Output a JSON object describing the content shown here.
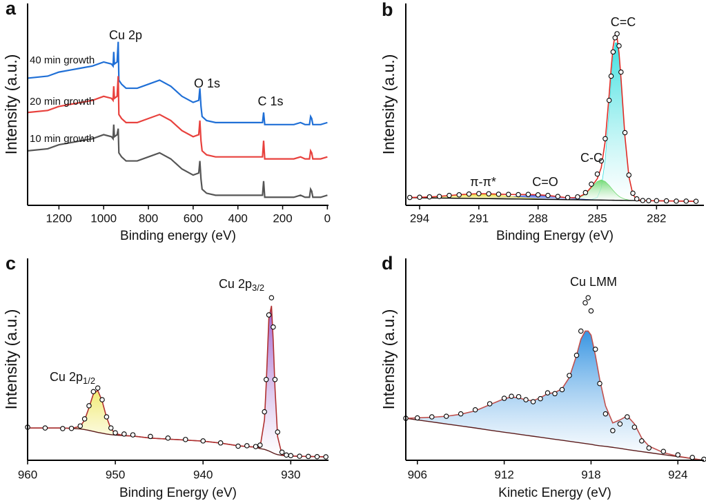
{
  "chart_data": [
    {
      "type": "line",
      "panel_label": "a",
      "ylabel": "Intensity (a.u.)",
      "xlabel": "Binding energy (eV)",
      "xlim": [
        1340,
        -5
      ],
      "xticks": [
        1200,
        1000,
        800,
        600,
        400,
        200,
        0
      ],
      "ylim": [
        0,
        100
      ],
      "annotations": [
        "Cu 2p",
        "O 1s",
        "C 1s"
      ],
      "x": [
        1340,
        1250,
        1200,
        1150,
        1100,
        1050,
        1000,
        965,
        958,
        955,
        952,
        940,
        935,
        932,
        920,
        900,
        850,
        800,
        750,
        700,
        650,
        600,
        575,
        570,
        565,
        560,
        540,
        500,
        400,
        300,
        290,
        285,
        280,
        250,
        200,
        150,
        120,
        100,
        80,
        75,
        70,
        65,
        60,
        30,
        0
      ],
      "series": [
        {
          "name": "40 min growth",
          "color": "#1f6fd6",
          "style": "line",
          "values": [
            63,
            64,
            66,
            67,
            68,
            69,
            71,
            70,
            69,
            76,
            70,
            71,
            81,
            62,
            60,
            58,
            58,
            60,
            62,
            59,
            54,
            51,
            52,
            58,
            49,
            44,
            42,
            41,
            41,
            41,
            41,
            46,
            40,
            40,
            40,
            40,
            41,
            40,
            40,
            44,
            43,
            40,
            40,
            40,
            41
          ]
        },
        {
          "name": "20 min growth",
          "color": "#e8413d",
          "style": "line",
          "values": [
            46,
            47,
            49,
            50,
            51,
            52,
            54,
            53,
            52,
            59,
            53,
            54,
            64,
            45,
            43,
            41,
            41,
            43,
            45,
            42,
            37,
            34,
            35,
            42,
            32,
            27,
            25,
            24,
            24,
            24,
            24,
            32,
            23,
            23,
            23,
            23,
            24,
            23,
            23,
            27,
            26,
            23,
            23,
            23,
            24
          ]
        },
        {
          "name": "10 min growth",
          "color": "#555555",
          "style": "line",
          "values": [
            27,
            28,
            30,
            31,
            32,
            33,
            35,
            34,
            33,
            40,
            34,
            35,
            38,
            26,
            24,
            22,
            22,
            24,
            26,
            23,
            18,
            15,
            16,
            22,
            13,
            8,
            6,
            5,
            5,
            5,
            5,
            12,
            4,
            4,
            4,
            4,
            5,
            4,
            4,
            8,
            7,
            4,
            4,
            4,
            5
          ]
        }
      ]
    },
    {
      "type": "spectrum",
      "panel_label": "b",
      "ylabel": "Intensity (a.u.)",
      "xlabel": "Binding Energy (eV)",
      "xlim": [
        294.7,
        279.6
      ],
      "xticks": [
        294,
        291,
        288,
        285,
        282
      ],
      "ylim": [
        0,
        100
      ],
      "x": [
        294.5,
        294,
        293.5,
        293,
        292.5,
        292,
        291.5,
        291,
        290.5,
        290,
        289.5,
        289,
        288.5,
        288,
        287.5,
        287,
        286.5,
        286,
        285.6,
        285.3,
        285,
        284.8,
        284.6,
        284.4,
        284.3,
        284.2,
        284.1,
        284,
        283.9,
        283.8,
        283.6,
        283.4,
        283.2,
        283,
        282.7,
        282.4,
        282,
        281.5,
        281,
        280.5,
        280
      ],
      "series": [
        {
          "color": "#000000",
          "style": "points",
          "values": [
            3.9,
            4.0,
            4.2,
            4.4,
            4.9,
            5.2,
            5.6,
            5.8,
            5.7,
            5.5,
            5.4,
            5.3,
            5.4,
            5.2,
            4.9,
            4.4,
            3.9,
            4.2,
            6.3,
            10.5,
            15.5,
            22,
            33,
            52,
            64,
            76,
            83,
            85,
            79,
            66,
            36,
            15,
            6,
            3.2,
            2.4,
            2.3,
            2.3,
            2.2,
            2.1,
            2.1,
            2.0
          ]
        },
        {
          "color": "#e02b25",
          "style": "line",
          "values": [
            3.91,
            3.98,
            4.15,
            4.45,
            4.86,
            5.28,
            5.59,
            5.76,
            5.69,
            5.53,
            5.39,
            5.36,
            5.36,
            5.23,
            4.87,
            4.32,
            3.71,
            3.84,
            5.76,
            9.12,
            13.21,
            18.7,
            31.77,
            54.85,
            67.63,
            78.42,
            84.31,
            83.3,
            75.48,
            62.87,
            34.05,
            14.22,
            5.4,
            2.87,
            2.33,
            2.3,
            2.25,
            2.19,
            2.12,
            2.06,
            2.0
          ]
        },
        {
          "name": "C=C",
          "color": "#35dede",
          "style": "component",
          "values": [
            0,
            0,
            0,
            0,
            0,
            0,
            0,
            0,
            0,
            0,
            0,
            0,
            0,
            0,
            0,
            0,
            0,
            0,
            0,
            0.2,
            1.3,
            6.1,
            20,
            45,
            59,
            71,
            78,
            78,
            71,
            59,
            31,
            11.6,
            3,
            0.5,
            0,
            0,
            0,
            0,
            0,
            0,
            0
          ]
        },
        {
          "name": "C-C",
          "color": "#6fd86f",
          "style": "component",
          "values": [
            0,
            0,
            0,
            0,
            0,
            0,
            0,
            0,
            0,
            0,
            0,
            0,
            0,
            0,
            0,
            0,
            0,
            0.6,
            2.8,
            6.1,
            9.2,
            10,
            9.2,
            7.3,
            6.1,
            4.9,
            3.8,
            2.8,
            2,
            1.4,
            0.6,
            0.2,
            0,
            0,
            0,
            0,
            0,
            0,
            0,
            0,
            0
          ]
        },
        {
          "name": "C=O",
          "color": "#3355e0",
          "style": "component",
          "values": [
            0,
            0,
            0,
            0,
            0,
            0,
            0,
            0.1,
            0.23,
            0.5,
            0.9,
            1.4,
            1.83,
            2,
            1.83,
            1.4,
            0.9,
            0.5,
            0.27,
            0.16,
            0.09,
            0,
            0,
            0,
            0,
            0,
            0,
            0,
            0,
            0,
            0,
            0,
            0,
            0,
            0,
            0,
            0,
            0,
            0,
            0,
            0
          ]
        },
        {
          "name": "π-π*",
          "color": "#e6dc2c",
          "style": "component",
          "values": [
            0.11,
            0.24,
            0.48,
            0.84,
            1.31,
            1.79,
            2.16,
            2.3,
            2.16,
            1.79,
            1.31,
            0.84,
            0.48,
            0.24,
            0.11,
            0.05,
            0,
            0,
            0,
            0,
            0,
            0,
            0,
            0,
            0,
            0,
            0,
            0,
            0,
            0,
            0,
            0,
            0,
            0,
            0,
            0,
            0,
            0,
            0,
            0,
            0
          ]
        },
        {
          "color": "#000000",
          "style": "background",
          "values": [
            3.8,
            3.74,
            3.67,
            3.61,
            3.55,
            3.49,
            3.43,
            3.36,
            3.3,
            3.24,
            3.18,
            3.12,
            3.05,
            2.99,
            2.93,
            2.87,
            2.81,
            2.74,
            2.69,
            2.66,
            2.62,
            2.6,
            2.57,
            2.55,
            2.53,
            2.52,
            2.51,
            2.5,
            2.48,
            2.47,
            2.45,
            2.42,
            2.4,
            2.37,
            2.33,
            2.3,
            2.25,
            2.19,
            2.12,
            2.06,
            2.0
          ]
        }
      ]
    },
    {
      "type": "spectrum",
      "panel_label": "c",
      "ylabel": "Intensity (a.u.)",
      "xlabel": "Binding Energy (eV)",
      "xlim": [
        960,
        925.7
      ],
      "xticks": [
        960,
        950,
        940,
        930
      ],
      "ylim": [
        0,
        100
      ],
      "x": [
        960,
        958,
        956,
        955,
        954,
        953.5,
        953,
        952.5,
        952,
        951.5,
        951,
        950.5,
        950,
        949,
        948,
        946,
        944,
        942,
        940,
        938,
        936,
        935,
        934,
        933.5,
        933,
        932.8,
        932.5,
        932.2,
        932,
        931.8,
        931.5,
        931,
        930.5,
        930,
        929,
        928,
        927,
        926
      ],
      "series": [
        {
          "color": "#000000",
          "style": "points",
          "values": [
            16.4,
            16,
            15.7,
            15.8,
            17,
            20.5,
            27,
            34,
            35.8,
            30,
            21.5,
            16,
            13.6,
            13,
            12.6,
            11.8,
            11,
            10.3,
            9.6,
            8.6,
            7,
            7.2,
            6.8,
            7.5,
            24,
            40,
            72,
            80.5,
            66,
            40,
            14,
            4,
            2.6,
            2.3,
            2,
            1.9,
            1.8,
            1.7
          ]
        },
        {
          "color": "#b03030",
          "style": "line",
          "values": [
            16,
            16,
            16,
            15.8,
            16.8,
            19.9,
            26.1,
            32.9,
            34.6,
            29.3,
            21.3,
            15.6,
            13.2,
            12.2,
            12,
            11,
            10.5,
            10,
            9.5,
            8.5,
            7.2,
            6.8,
            6.5,
            6.4,
            20,
            37.7,
            70.2,
            76.5,
            59.2,
            35.8,
            11.7,
            2.7,
            2.2,
            2.1,
            2,
            1.9,
            1.8,
            1.7
          ]
        },
        {
          "name": "Cu 2p",
          "name_sub": "1/2",
          "color": "#f0e96a",
          "style": "component",
          "values": [
            0,
            0,
            0,
            0,
            1.3,
            4.7,
            11.3,
            18.6,
            20.8,
            15.9,
            8.3,
            2.9,
            0.7,
            0,
            0,
            0,
            0,
            0,
            0,
            0,
            0,
            0,
            0,
            0,
            0,
            0,
            0,
            0,
            0,
            0,
            0,
            0,
            0,
            0,
            0,
            0,
            0,
            0
          ]
        },
        {
          "name": "Cu 2p",
          "name_sub": "3/2",
          "color": "#9b59c9",
          "style": "component",
          "values": [
            0,
            0,
            0,
            0,
            0,
            0,
            0,
            0,
            0,
            0,
            0,
            0,
            0,
            0,
            0,
            0,
            0,
            0,
            0,
            0,
            0,
            0,
            0,
            0.6,
            14.6,
            32.6,
            65.6,
            72.5,
            55.6,
            32.6,
            8.9,
            0.3,
            0,
            0,
            0,
            0,
            0,
            0
          ]
        },
        {
          "color": "#5a1a1a",
          "style": "background",
          "values": [
            16,
            16,
            16,
            15.8,
            15.5,
            15.2,
            14.8,
            14.3,
            13.8,
            13.4,
            13,
            12.7,
            12.5,
            12.2,
            12,
            11,
            10.5,
            10,
            9.5,
            8.5,
            7.2,
            6.8,
            6.5,
            5.8,
            5.4,
            5.1,
            4.6,
            4,
            3.6,
            3.2,
            2.8,
            2.4,
            2.2,
            2.1,
            2,
            1.9,
            1.8,
            1.7
          ]
        }
      ]
    },
    {
      "type": "spectrum",
      "panel_label": "d",
      "ylabel": "Intensity (a.u.)",
      "xlabel": "Kinetic Energy (eV)",
      "xlim": [
        905.2,
        925.8
      ],
      "xticks": [
        906,
        912,
        918,
        924
      ],
      "ylim": [
        0,
        100
      ],
      "annotations": [
        "Cu LMM"
      ],
      "x": [
        905.2,
        906,
        907,
        908,
        909,
        910,
        911,
        912,
        912.5,
        913,
        913.5,
        914,
        914.5,
        915,
        915.5,
        916,
        916.5,
        917,
        917.3,
        917.6,
        917.8,
        918,
        918.3,
        918.6,
        919,
        919.5,
        920,
        920.5,
        921,
        921.5,
        922,
        923,
        924,
        925,
        925.8
      ],
      "series": [
        {
          "color": "#000000",
          "style": "points",
          "values": [
            20.8,
            21,
            21.5,
            21.8,
            23,
            25,
            28,
            30.7,
            31.7,
            31.5,
            30,
            29,
            30.5,
            33.4,
            33,
            35,
            42,
            52,
            64,
            78,
            80.5,
            74,
            55,
            38,
            23,
            14.7,
            18,
            21.5,
            16.4,
            9.6,
            6.1,
            4.4,
            2.7,
            1.4,
            0.5
          ]
        },
        {
          "color": "#c0504d",
          "fill": "#2d8fe0",
          "style": "line",
          "values": [
            20.8,
            21,
            21.3,
            21.8,
            22.8,
            24.5,
            27.5,
            30.5,
            31.3,
            31,
            29.8,
            29.5,
            31,
            33,
            33.5,
            35.5,
            41,
            52,
            60,
            64,
            64,
            62,
            52,
            40,
            27,
            18.5,
            20,
            22,
            18,
            11,
            7,
            3.8,
            2,
            0.9,
            0
          ]
        },
        {
          "color": "#5a1a1a",
          "style": "background",
          "values": [
            20.8,
            20,
            19,
            18,
            17,
            16,
            14.9,
            13.9,
            13.4,
            12.9,
            12.4,
            11.9,
            11.4,
            10.9,
            10.4,
            9.9,
            9.4,
            8.9,
            8.6,
            8.3,
            8.1,
            7.9,
            7.5,
            7.2,
            6.9,
            6.4,
            5.9,
            5.3,
            4.8,
            4.3,
            3.8,
            2.8,
            1.8,
            0.8,
            0
          ]
        }
      ]
    }
  ]
}
